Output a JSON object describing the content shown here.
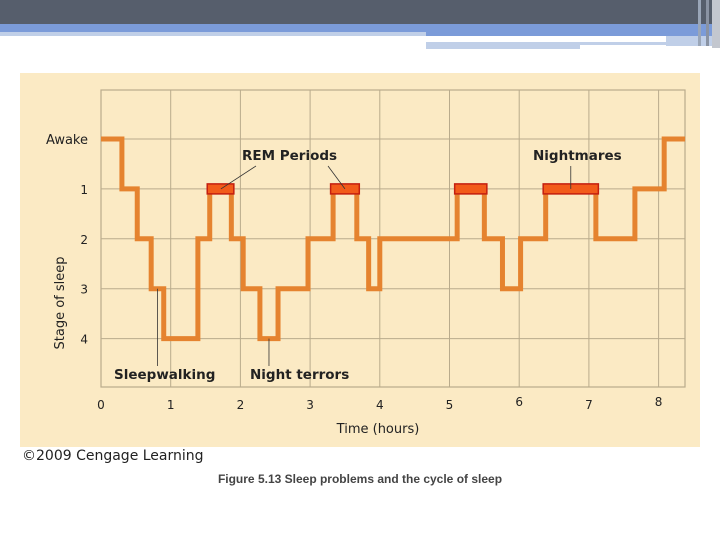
{
  "slide": {
    "copyright": "©2009 Cengage Learning",
    "caption": "Figure 5.13  Sleep problems and the cycle of sleep"
  },
  "colors": {
    "header_dark": "#565e6c",
    "header_accent": "#7b9bd9",
    "panel_background": "#fbeac4",
    "grid": "#b9ab8c",
    "sleep_line": "#e5832f",
    "rem_highlight": "#f25b1a",
    "rem_border": "#c41e0f"
  },
  "chart_data": {
    "type": "line",
    "subtype": "step",
    "title": "",
    "xlabel": "Time (hours)",
    "ylabel": "Stage of sleep",
    "xlim": [
      0,
      8.38
    ],
    "x_ticks": [
      "0",
      "1",
      "2",
      "3",
      "4",
      "5",
      "6",
      "7",
      "8"
    ],
    "y_ticks": [
      "Awake",
      "1",
      "2",
      "3",
      "4"
    ],
    "y_values_map": {
      "Awake": 0,
      "1": 1,
      "2": 2,
      "3": 3,
      "4": 4
    },
    "grid": true,
    "series": [
      {
        "name": "Sleep stage",
        "steps": [
          {
            "start": 0.0,
            "end": 0.3,
            "stage": 0
          },
          {
            "start": 0.3,
            "end": 0.52,
            "stage": 1
          },
          {
            "start": 0.52,
            "end": 0.72,
            "stage": 2
          },
          {
            "start": 0.72,
            "end": 0.9,
            "stage": 3
          },
          {
            "start": 0.9,
            "end": 1.39,
            "stage": 4
          },
          {
            "start": 1.39,
            "end": 1.56,
            "stage": 2
          },
          {
            "start": 1.56,
            "end": 1.87,
            "stage": 1,
            "rem": true
          },
          {
            "start": 1.87,
            "end": 2.04,
            "stage": 2
          },
          {
            "start": 2.04,
            "end": 2.28,
            "stage": 3
          },
          {
            "start": 2.28,
            "end": 2.54,
            "stage": 4
          },
          {
            "start": 2.54,
            "end": 2.97,
            "stage": 3
          },
          {
            "start": 2.97,
            "end": 3.33,
            "stage": 2
          },
          {
            "start": 3.33,
            "end": 3.67,
            "stage": 1,
            "rem": true
          },
          {
            "start": 3.67,
            "end": 3.84,
            "stage": 2
          },
          {
            "start": 3.84,
            "end": 4.0,
            "stage": 3
          },
          {
            "start": 4.0,
            "end": 5.11,
            "stage": 2
          },
          {
            "start": 5.11,
            "end": 5.5,
            "stage": 1,
            "rem": true
          },
          {
            "start": 5.5,
            "end": 5.76,
            "stage": 2
          },
          {
            "start": 5.76,
            "end": 6.02,
            "stage": 3
          },
          {
            "start": 6.02,
            "end": 6.38,
            "stage": 2
          },
          {
            "start": 6.38,
            "end": 7.1,
            "stage": 1,
            "rem": true
          },
          {
            "start": 7.1,
            "end": 7.66,
            "stage": 2
          },
          {
            "start": 7.66,
            "end": 8.08,
            "stage": 1
          },
          {
            "start": 8.08,
            "end": 8.38,
            "stage": 0
          }
        ]
      }
    ],
    "annotations": [
      {
        "text": "REM Periods",
        "points_to": [
          [
            1.72,
            1
          ],
          [
            3.5,
            1
          ]
        ]
      },
      {
        "text": "Nightmares",
        "points_to": [
          [
            6.74,
            1
          ]
        ]
      },
      {
        "text": "Sleepwalking",
        "points_to": [
          [
            0.81,
            3
          ]
        ]
      },
      {
        "text": "Night terrors",
        "points_to": [
          [
            2.41,
            4
          ]
        ]
      }
    ],
    "legend": null
  }
}
